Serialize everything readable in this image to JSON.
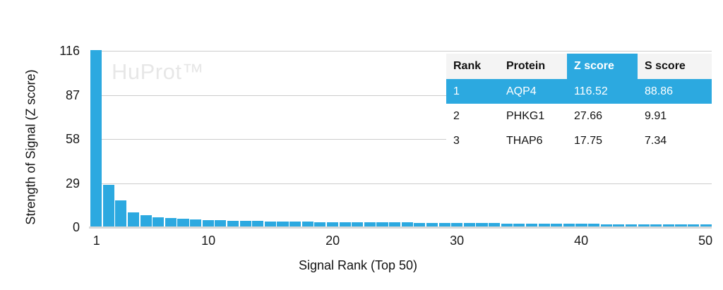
{
  "watermark": "HuProt™",
  "colors": {
    "accent": "#2ca9e0",
    "gridline": "#cccccc",
    "axis_line": "#d9d9d9",
    "table_header_bg": "#f4f4f4",
    "watermark": "#e7e7e7"
  },
  "chart_data": {
    "type": "bar",
    "title": "",
    "xlabel": "Signal Rank (Top 50)",
    "ylabel": "Strength of Signal (Z score)",
    "ylim": [
      0,
      116
    ],
    "yticks": [
      0,
      29,
      58,
      87,
      116
    ],
    "xticks": [
      1,
      10,
      20,
      30,
      40,
      50
    ],
    "grid": true,
    "legend": false,
    "x": [
      1,
      2,
      3,
      4,
      5,
      6,
      7,
      8,
      9,
      10,
      11,
      12,
      13,
      14,
      15,
      16,
      17,
      18,
      19,
      20,
      21,
      22,
      23,
      24,
      25,
      26,
      27,
      28,
      29,
      30,
      31,
      32,
      33,
      34,
      35,
      36,
      37,
      38,
      39,
      40,
      41,
      42,
      43,
      44,
      45,
      46,
      47,
      48,
      49,
      50
    ],
    "values": [
      116.52,
      27.66,
      17.75,
      9.9,
      8.0,
      6.4,
      6.0,
      5.4,
      5.1,
      4.8,
      4.5,
      4.3,
      4.15,
      4.0,
      3.9,
      3.8,
      3.7,
      3.6,
      3.5,
      3.45,
      3.4,
      3.3,
      3.25,
      3.2,
      3.1,
      3.05,
      3.0,
      2.9,
      2.85,
      2.8,
      2.7,
      2.65,
      2.6,
      2.5,
      2.45,
      2.4,
      2.35,
      2.3,
      2.25,
      2.2,
      2.15,
      2.1,
      2.05,
      2.0,
      1.95,
      1.9,
      1.85,
      1.8,
      1.75,
      1.7
    ]
  },
  "table": {
    "columns": [
      "Rank",
      "Protein",
      "Z score",
      "S score"
    ],
    "highlight_column": "Z score",
    "rows": [
      [
        "1",
        "AQP4",
        "116.52",
        "88.86"
      ],
      [
        "2",
        "PHKG1",
        "27.66",
        "9.91"
      ],
      [
        "3",
        "THAP6",
        "17.75",
        "7.34"
      ]
    ]
  }
}
